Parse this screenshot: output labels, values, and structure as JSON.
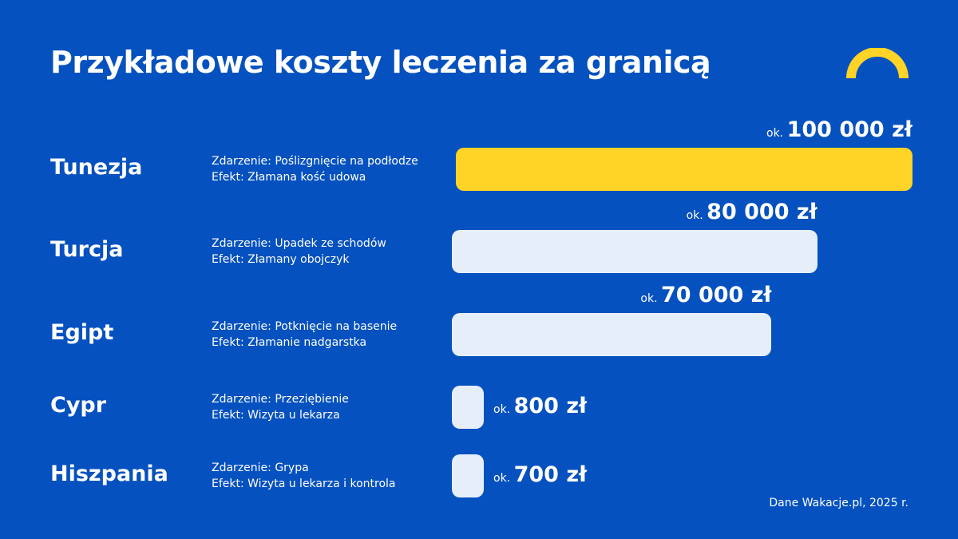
{
  "title": "Przykładowe koszty leczenia za granicą",
  "source": "Dane Wakacje.pl, 2025 r.",
  "colors": {
    "background": "#0551BF",
    "highlight": "#FFD426",
    "bar": "#E6EEF9",
    "text": "#FFFFFF"
  },
  "icons": {
    "logo": "yellow-arc-icon"
  },
  "chart_data": {
    "type": "bar",
    "orientation": "horizontal",
    "categories": [
      "Tunezja",
      "Turcja",
      "Egipt",
      "Cypr",
      "Hiszpania"
    ],
    "values": [
      100000,
      80000,
      70000,
      800,
      700
    ],
    "unit": "zł",
    "value_labels": [
      "100 000 zł",
      "80 000 zł",
      "70 000 zł",
      "800 zł",
      "700 zł"
    ],
    "value_prefix": "ok.",
    "events": [
      "Zdarzenie: Poślizgnięcie na podłodze",
      "Zdarzenie: Upadek ze schodów",
      "Zdarzenie: Potknięcie na basenie",
      "Zdarzenie: Przeziębienie",
      "Zdarzenie: Grypa"
    ],
    "effects": [
      "Efekt: Złamana kość udowa",
      "Efekt: Złamany obojczyk",
      "Efekt: Złamanie nadgarstka",
      "Efekt: Wizyta u lekarza",
      "Efekt: Wizyta u lekarza i kontrola"
    ],
    "highlight_index": 0
  }
}
